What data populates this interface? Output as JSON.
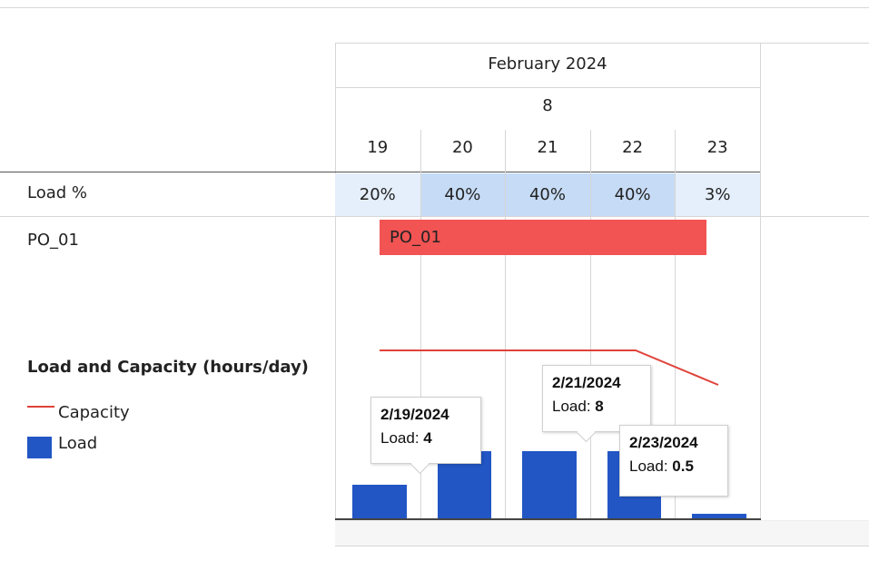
{
  "timeline": {
    "month": "February 2024",
    "week": "8",
    "days": [
      "19",
      "20",
      "21",
      "22",
      "23"
    ]
  },
  "rows": {
    "load_label": "Load %",
    "load_values": [
      "20%",
      "40%",
      "40%",
      "40%",
      "3%"
    ],
    "resource_label": "PO_01",
    "task_bar_label": "PO_01"
  },
  "legend": {
    "title": "Load and Capacity (hours/day)",
    "capacity_label": "Capacity",
    "load_label": "Load"
  },
  "tooltips": [
    {
      "date": "2/19/2024",
      "prefix": "Load:",
      "value": "4"
    },
    {
      "date": "2/21/2024",
      "prefix": "Load:",
      "value": "8"
    },
    {
      "date": "2/23/2024",
      "prefix": "Load:",
      "value": "0.5"
    }
  ],
  "colors": {
    "load_bar": "#2256c4",
    "capacity_line": "#e0423a",
    "task_bar": "#f25353",
    "load_cell_light": "#e5eefb",
    "load_cell_strong": "#c6dbf5"
  },
  "chart_data": {
    "type": "bar",
    "title": "Load and Capacity (hours/day)",
    "categories": [
      "19",
      "20",
      "21",
      "22",
      "23"
    ],
    "series": [
      {
        "name": "Load",
        "values": [
          4,
          8,
          8,
          8,
          0.5
        ]
      },
      {
        "name": "Capacity",
        "type": "line",
        "values": [
          8,
          8,
          8,
          8,
          0
        ]
      }
    ]
  }
}
